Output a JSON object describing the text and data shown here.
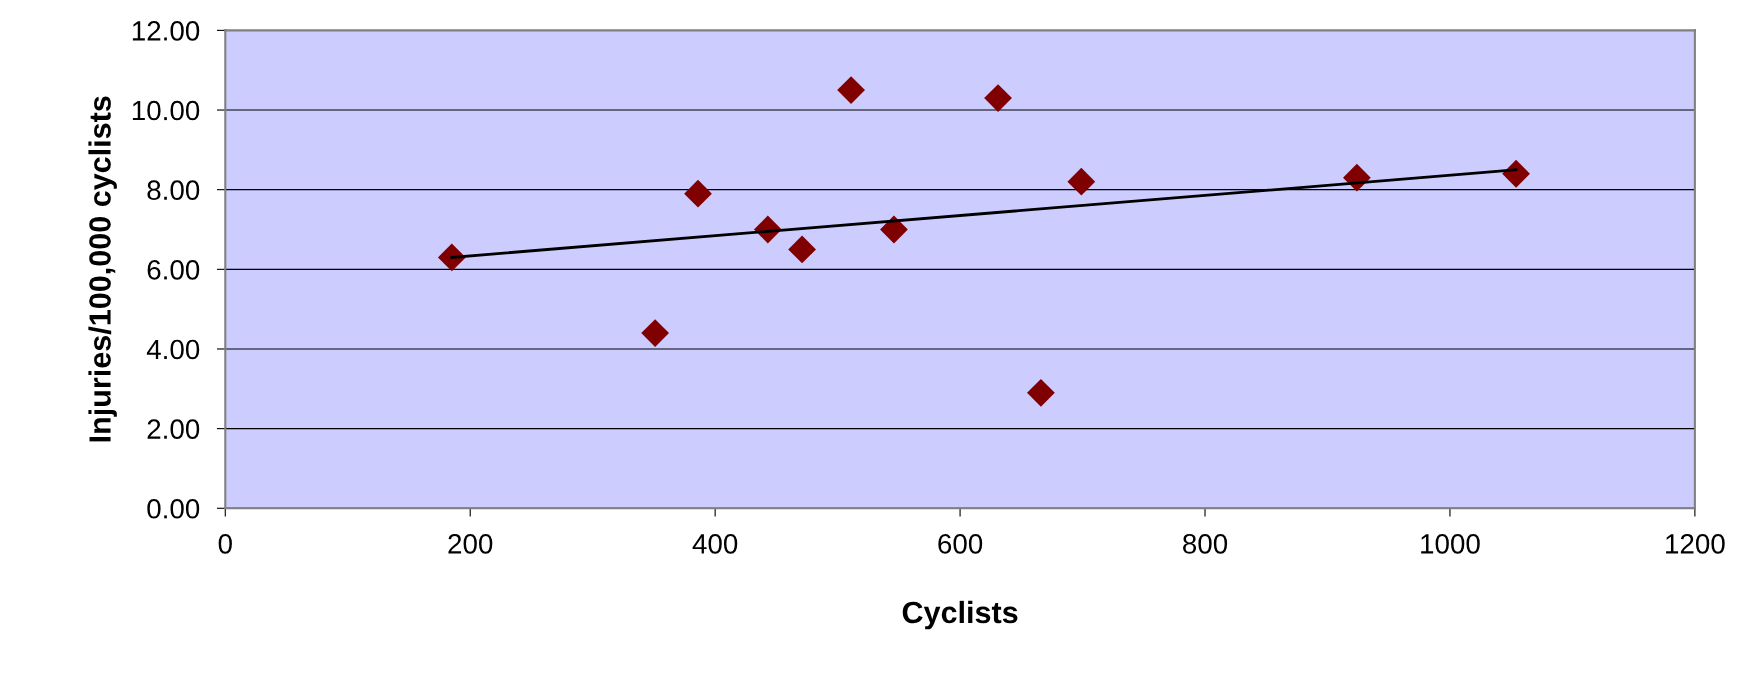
{
  "chart_data": {
    "type": "scatter",
    "xlabel": "Cyclists",
    "ylabel": "Injuries/100,000 cyclists",
    "series": [
      {
        "color": "#800000",
        "marker": "diamond",
        "x": [
          185,
          351,
          386,
          443,
          471,
          511,
          546,
          631,
          666,
          699,
          924,
          1054
        ],
        "values": [
          6.3,
          4.4,
          7.9,
          7.0,
          6.5,
          10.5,
          7.0,
          10.3,
          2.9,
          8.2,
          8.3,
          8.4
        ]
      },
      {
        "type": "line",
        "color": "#000000",
        "x": [
          185,
          1054
        ],
        "values": [
          6.3,
          8.5
        ]
      }
    ],
    "xlim": [
      0,
      1200
    ],
    "xticks": [
      0,
      200,
      400,
      600,
      800,
      1000,
      1200
    ],
    "ylim": [
      0,
      12
    ],
    "yticks": [
      {
        "value": 0,
        "label": "0.00"
      },
      {
        "value": 2,
        "label": "2.00"
      },
      {
        "value": 4,
        "label": "4.00"
      },
      {
        "value": 6,
        "label": "6.00"
      },
      {
        "value": 8,
        "label": "8.00"
      },
      {
        "value": 10,
        "label": "10.00"
      },
      {
        "value": 12,
        "label": "12.00"
      }
    ],
    "grid": "y"
  }
}
